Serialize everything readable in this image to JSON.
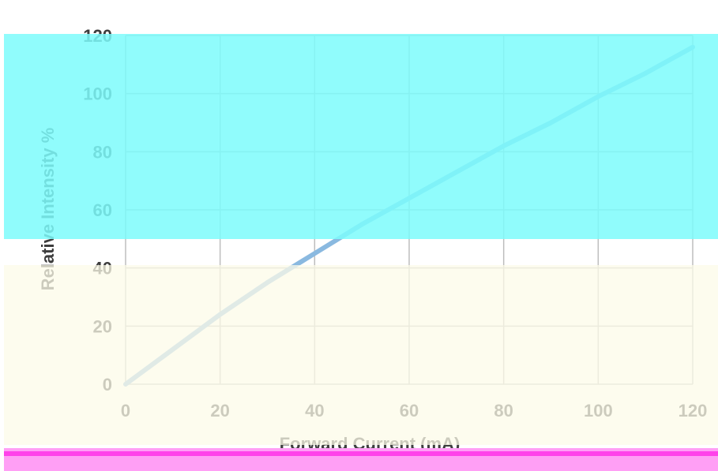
{
  "chart_data": {
    "type": "line",
    "title": "",
    "xlabel": "Forward Current (mA)",
    "ylabel": "Relative Intensity %",
    "xlim": [
      0,
      120
    ],
    "ylim": [
      0,
      120
    ],
    "x_ticks": [
      0,
      20,
      40,
      60,
      80,
      100,
      120
    ],
    "y_ticks": [
      0,
      20,
      40,
      60,
      80,
      100,
      120
    ],
    "x_tick_labels": [
      "0",
      "20",
      "40",
      "60",
      "80",
      "100",
      "120"
    ],
    "y_tick_labels": [
      "0",
      "20",
      "40",
      "60",
      "80",
      "100",
      "120"
    ],
    "grid": true,
    "legend": "none",
    "series": [
      {
        "x": [
          0,
          10,
          20,
          30,
          40,
          50,
          60,
          70,
          80,
          90,
          100,
          110,
          120
        ],
        "y": [
          0,
          12,
          24,
          35,
          45,
          55,
          64,
          73,
          82,
          90,
          99,
          107,
          116
        ],
        "color": "#8ab9e0"
      }
    ],
    "colors": {
      "grid": "#bdbdbd",
      "axis": "#bdbdbd",
      "text": "#3d3d3d"
    }
  }
}
